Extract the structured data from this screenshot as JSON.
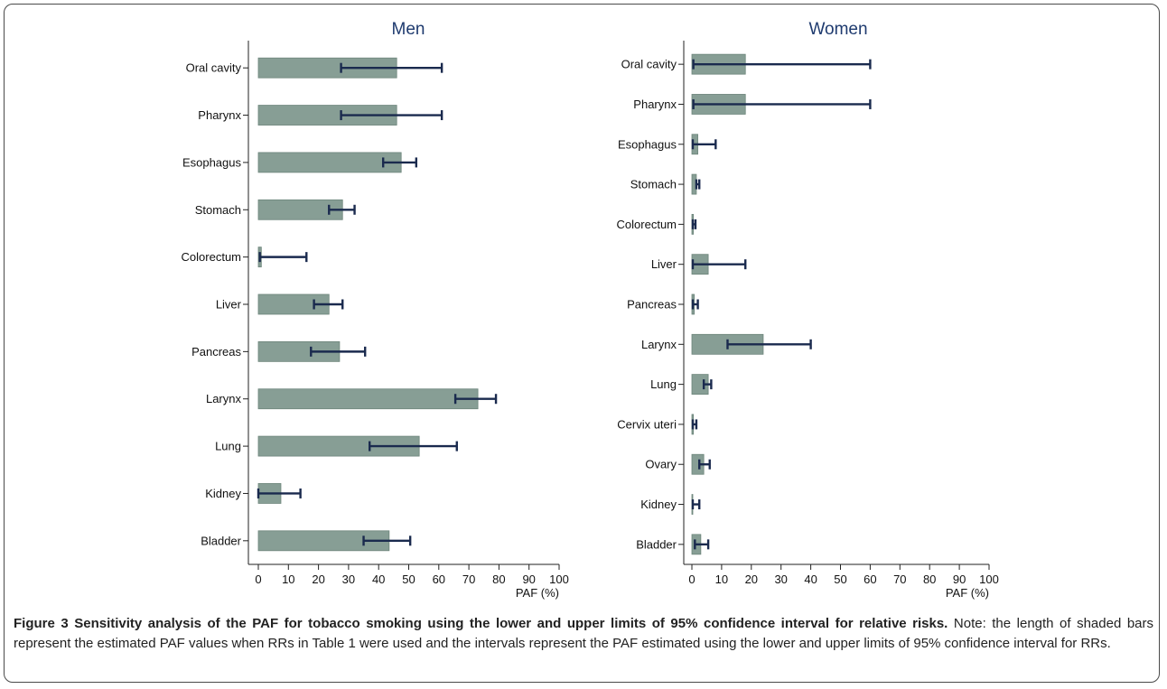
{
  "colors": {
    "bar": "#879e95",
    "bar_edge": "#6d857b",
    "ci": "#1a2a4e",
    "title": "#1f3b6f"
  },
  "chart_data": [
    {
      "type": "bar",
      "orientation": "horizontal",
      "title": "Men",
      "xlabel": "PAF (%)",
      "xlim": [
        0,
        100
      ],
      "xticks": [
        "0",
        "10",
        "20",
        "30",
        "40",
        "50",
        "60",
        "70",
        "80",
        "90",
        "100"
      ],
      "categories": [
        "Oral cavity",
        "Pharynx",
        "Esophagus",
        "Stomach",
        "Colorectum",
        "Liver",
        "Pancreas",
        "Larynx",
        "Lung",
        "Kidney",
        "Bladder"
      ],
      "values": [
        46,
        46,
        47.5,
        28,
        1,
        23.5,
        27,
        73,
        53.5,
        7.5,
        43.5
      ],
      "ci_lower": [
        27.5,
        27.5,
        41.5,
        23.5,
        0.5,
        18.5,
        17.5,
        65.5,
        37,
        0,
        35
      ],
      "ci_upper": [
        61,
        61,
        52.5,
        32,
        16,
        28,
        35.5,
        79,
        66,
        14,
        50.5
      ]
    },
    {
      "type": "bar",
      "orientation": "horizontal",
      "title": "Women",
      "xlabel": "PAF (%)",
      "xlim": [
        0,
        100
      ],
      "xticks": [
        "0",
        "10",
        "20",
        "30",
        "40",
        "50",
        "60",
        "70",
        "80",
        "90",
        "100"
      ],
      "categories": [
        "Oral cavity",
        "Pharynx",
        "Esophagus",
        "Stomach",
        "Colorectum",
        "Liver",
        "Pancreas",
        "Larynx",
        "Lung",
        "Cervix uteri",
        "Ovary",
        "Kidney",
        "Bladder"
      ],
      "values": [
        18,
        18,
        2,
        1.5,
        0.5,
        5.5,
        0.8,
        24,
        5.5,
        0.5,
        4,
        0.3,
        3
      ],
      "ci_lower": [
        0.5,
        0.5,
        0.3,
        1.5,
        0.3,
        0.3,
        0.3,
        12,
        4,
        0.3,
        2.5,
        0.3,
        1
      ],
      "ci_upper": [
        60,
        60,
        8,
        2.5,
        1.2,
        18,
        2,
        40,
        6.5,
        1.5,
        6,
        2.5,
        5.5
      ]
    }
  ],
  "caption": {
    "label": "Figure 3",
    "title": "Sensitivity analysis of the PAF for tobacco smoking using the lower and upper limits of 95% confidence interval for relative risks.",
    "note": "Note: the length of shaded bars represent the estimated PAF values when RRs in Table 1 were used and the intervals represent the PAF estimated using the lower and upper limits of 95% confidence interval for RRs."
  }
}
